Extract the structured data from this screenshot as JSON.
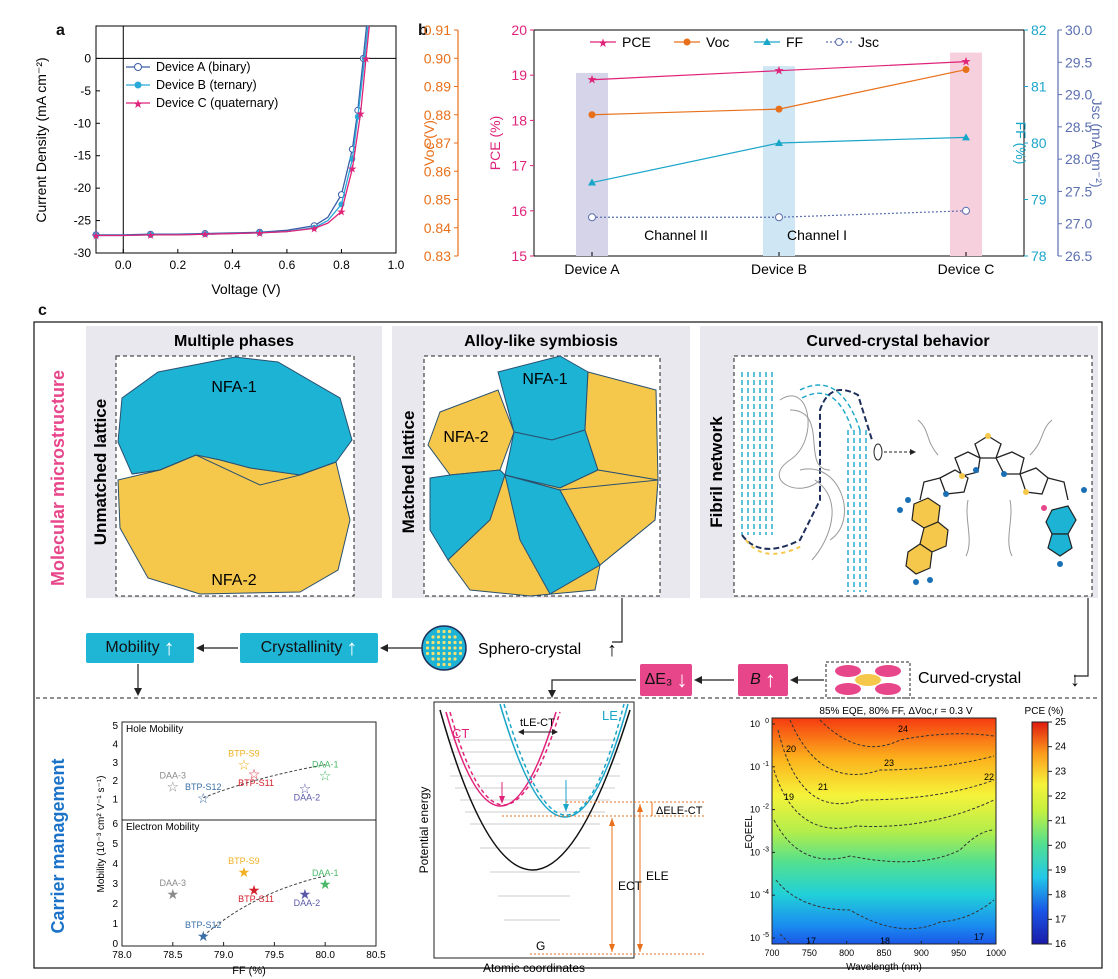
{
  "panel_letters": {
    "a": "a",
    "b": "b",
    "c": "c"
  },
  "panel_a": {
    "ylabel": "Current Density (mA cm⁻²)",
    "xlabel": "Voltage (V)",
    "legend": [
      "Device A (binary)",
      "Device B (ternary)",
      "Device C (quaternary)"
    ]
  },
  "panel_b": {
    "ylabel_voc": "Voc (V)",
    "ylabel_pce": "PCE (%)",
    "ylabel_ff": "FF (%)",
    "ylabel_jsc": "Jsc (mA cm⁻²)",
    "legend": [
      "PCE",
      "Voc",
      "FF",
      "Jsc"
    ],
    "channel_labels": [
      "Channel II",
      "Channel I"
    ]
  },
  "panel_c": {
    "side_label_top": "Molecular microstructure",
    "side_label_bottom": "Carrier management",
    "box1_title": "Multiple phases",
    "box1_side": "Unmatched lattice",
    "box1_nfa1": "NFA-1",
    "box1_nfa2": "NFA-2",
    "box2_title": "Alloy-like symbiosis",
    "box2_side": "Matched lattice",
    "box2_nfa1": "NFA-1",
    "box2_nfa2": "NFA-2",
    "box3_title": "Curved-crystal behavior",
    "box3_side": "Fibril network",
    "flow_mobility": "Mobility",
    "flow_crystallinity": "Crystallinity",
    "flow_sphero": "Sphero-crystal",
    "flow_curved": "Curved-crystal",
    "flow_delta_e3": "ΔE₃",
    "flow_b": "B",
    "mob_hole": "Hole Mobility",
    "mob_electron": "Electron Mobility",
    "mob_ylabel": "Mobility (10⁻³ cm² V⁻¹ s⁻¹)",
    "mob_xlabel": "FF (%)",
    "mob_points_hole": [
      "BTP-S9",
      "BTP-S11",
      "DAA-1",
      "DAA-3",
      "BTP-S12",
      "DAA-2"
    ],
    "mob_points_electron": [
      "BTP-S9",
      "BTP-S11",
      "DAA-1",
      "DAA-3",
      "BTP-S12",
      "DAA-2"
    ],
    "energy_ylabel": "Potential energy",
    "energy_xlabel": "Atomic coordinates",
    "energy_ct": "CT",
    "energy_le": "LE",
    "energy_g": "G",
    "energy_tle": "tLE-CT",
    "energy_dele": "ΔELE-CT",
    "energy_ect": "ECT",
    "energy_ele": "ELE",
    "heat_title": "85% EQE, 80% FF, ΔVoc,r = 0.3 V",
    "heat_xlabel": "Wavelength (nm)",
    "heat_ylabel": "EQEEL",
    "heat_cbar_title": "PCE (%)",
    "heat_contours": [
      "24",
      "23",
      "21",
      "20",
      "19",
      "22",
      "17",
      "18",
      "17"
    ]
  },
  "chart_data": [
    {
      "type": "line",
      "xlabel": "Voltage (V)",
      "ylabel": "Current Density (mA cm-2)",
      "xlim": [
        -0.1,
        1.0
      ],
      "ylim": [
        -30,
        5
      ],
      "xticks": [
        0.0,
        0.2,
        0.4,
        0.6,
        0.8,
        1.0
      ],
      "yticks": [
        0,
        -5,
        -10,
        -15,
        -20,
        -25,
        -30
      ],
      "series": [
        {
          "name": "Device A (binary)",
          "color": "#3a5da8",
          "marker": "open-circle",
          "x": [
            -0.1,
            0.0,
            0.1,
            0.2,
            0.3,
            0.4,
            0.5,
            0.6,
            0.7,
            0.75,
            0.8,
            0.84,
            0.86,
            0.88
          ],
          "y": [
            -27.2,
            -27.2,
            -27.1,
            -27.1,
            -27.0,
            -26.9,
            -26.8,
            -26.5,
            -25.8,
            -24.5,
            -21.0,
            -14.0,
            -8.0,
            0.0
          ]
        },
        {
          "name": "Device B (ternary)",
          "color": "#29a9d8",
          "marker": "filled-circle",
          "x": [
            -0.1,
            0.0,
            0.1,
            0.2,
            0.3,
            0.4,
            0.5,
            0.6,
            0.7,
            0.75,
            0.8,
            0.84,
            0.86,
            0.885
          ],
          "y": [
            -27.3,
            -27.3,
            -27.2,
            -27.2,
            -27.1,
            -27.0,
            -26.9,
            -26.7,
            -26.1,
            -25.0,
            -22.5,
            -15.5,
            -9.0,
            0.0
          ]
        },
        {
          "name": "Device C (quaternary)",
          "color": "#e0237a",
          "marker": "star",
          "x": [
            -0.1,
            0.0,
            0.1,
            0.2,
            0.3,
            0.4,
            0.5,
            0.6,
            0.7,
            0.75,
            0.8,
            0.84,
            0.87,
            0.89
          ],
          "y": [
            -27.3,
            -27.3,
            -27.2,
            -27.2,
            -27.1,
            -27.0,
            -26.9,
            -26.7,
            -26.2,
            -25.4,
            -23.6,
            -17.0,
            -8.5,
            0.0
          ]
        }
      ]
    },
    {
      "type": "line",
      "categories": [
        "Device A",
        "Device B",
        "Device C"
      ],
      "axes": {
        "voc": {
          "label": "Voc (V)",
          "range": [
            0.83,
            0.91
          ],
          "ticks": [
            0.83,
            0.84,
            0.85,
            0.86,
            0.87,
            0.88,
            0.89,
            0.9,
            0.91
          ]
        },
        "pce": {
          "label": "PCE (%)",
          "range": [
            15,
            20
          ],
          "ticks": [
            15,
            16,
            17,
            18,
            19,
            20
          ]
        },
        "ff": {
          "label": "FF (%)",
          "range": [
            78,
            82
          ],
          "ticks": [
            78,
            79,
            80,
            81,
            82
          ]
        },
        "jsc": {
          "label": "Jsc (mA cm-2)",
          "range": [
            26.5,
            30.0
          ],
          "ticks": [
            26.5,
            27.0,
            27.5,
            28.0,
            28.5,
            29.0,
            29.5,
            30.0
          ]
        }
      },
      "series": [
        {
          "name": "PCE",
          "axis": "pce",
          "color": "#e0237a",
          "values": [
            18.9,
            19.1,
            19.3
          ]
        },
        {
          "name": "Voc",
          "axis": "voc",
          "color": "#e8701a",
          "values": [
            0.88,
            0.882,
            0.896
          ]
        },
        {
          "name": "FF",
          "axis": "ff",
          "color": "#1aa6c9",
          "values": [
            79.3,
            80.0,
            80.1
          ]
        },
        {
          "name": "Jsc",
          "axis": "jsc",
          "color": "#5b6fb0",
          "values": [
            27.1,
            27.1,
            27.2
          ]
        }
      ],
      "shaded": [
        "Device A",
        "Device B",
        "Device C"
      ],
      "annotations": [
        "Channel II",
        "Channel I"
      ]
    },
    {
      "type": "scatter",
      "title": "Hole Mobility",
      "xlabel": "FF (%)",
      "xlim": [
        78.0,
        80.5
      ],
      "ylim": [
        0,
        5
      ],
      "points": [
        {
          "label": "DAA-3",
          "x": 78.5,
          "y": 1.7
        },
        {
          "label": "BTP-S12",
          "x": 78.8,
          "y": 1.1
        },
        {
          "label": "BTP-S9",
          "x": 79.2,
          "y": 2.9
        },
        {
          "label": "BTP-S11",
          "x": 79.3,
          "y": 2.4
        },
        {
          "label": "DAA-2",
          "x": 79.8,
          "y": 1.6
        },
        {
          "label": "DAA-1",
          "x": 80.0,
          "y": 2.3
        }
      ]
    },
    {
      "type": "scatter",
      "title": "Electron Mobility",
      "xlabel": "FF (%)",
      "xlim": [
        78.0,
        80.5
      ],
      "ylim": [
        0,
        6
      ],
      "points": [
        {
          "label": "DAA-3",
          "x": 78.5,
          "y": 2.5
        },
        {
          "label": "BTP-S12",
          "x": 78.8,
          "y": 0.4
        },
        {
          "label": "BTP-S9",
          "x": 79.2,
          "y": 3.6
        },
        {
          "label": "BTP-S11",
          "x": 79.3,
          "y": 2.7
        },
        {
          "label": "DAA-2",
          "x": 79.8,
          "y": 2.5
        },
        {
          "label": "DAA-1",
          "x": 80.0,
          "y": 3.0
        }
      ]
    },
    {
      "type": "heatmap",
      "title": "85% EQE, 80% FF, ΔVoc,r = 0.3 V",
      "xlabel": "Wavelength (nm)",
      "ylabel": "EQEEL",
      "xlim": [
        700,
        1000
      ],
      "xticks": [
        700,
        750,
        800,
        850,
        900,
        950,
        1000
      ],
      "yticks": [
        "10^0",
        "10^-1",
        "10^-2",
        "10^-3",
        "10^-4",
        "10^-5"
      ],
      "colorbar": {
        "label": "PCE (%)",
        "range": [
          16,
          25
        ],
        "ticks": [
          16,
          17,
          18,
          19,
          20,
          21,
          22,
          23,
          24,
          25
        ]
      }
    }
  ]
}
